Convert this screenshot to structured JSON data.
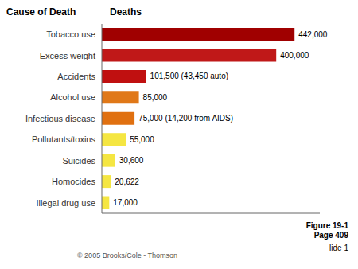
{
  "chart_data": {
    "type": "bar",
    "orientation": "horizontal",
    "ylabel": "Cause of Death",
    "xlabel": "Deaths",
    "categories": [
      "Illegal drug use",
      "Homocides",
      "Suicides",
      "Pollutants/toxins",
      "Infectious disease",
      "Alcohol use",
      "Accidents",
      "Excess weight",
      "Tobacco use"
    ],
    "values": [
      17000,
      20622,
      30600,
      55000,
      75000,
      85000,
      101500,
      400000,
      442000
    ],
    "value_labels": [
      "17,000",
      "20,622",
      "30,600",
      "55,000",
      "75,000 (14,200 from AIDS)",
      "85,000",
      "101,500 (43,450 auto)",
      "400,000",
      "442,000"
    ],
    "data_labels": true,
    "colors": [
      "#F5E642",
      "#F5E642",
      "#F5E642",
      "#F5E642",
      "#E07010",
      "#E07818",
      "#C01010",
      "#C01818",
      "#A00000"
    ],
    "xlim": [
      0,
      500000
    ],
    "tick_labels": "y",
    "grid": false,
    "annotations": [
      "Figure 19-1\nPage 409",
      "lide 1",
      "© 2005 Brooks/Cole - Thomson"
    ]
  }
}
